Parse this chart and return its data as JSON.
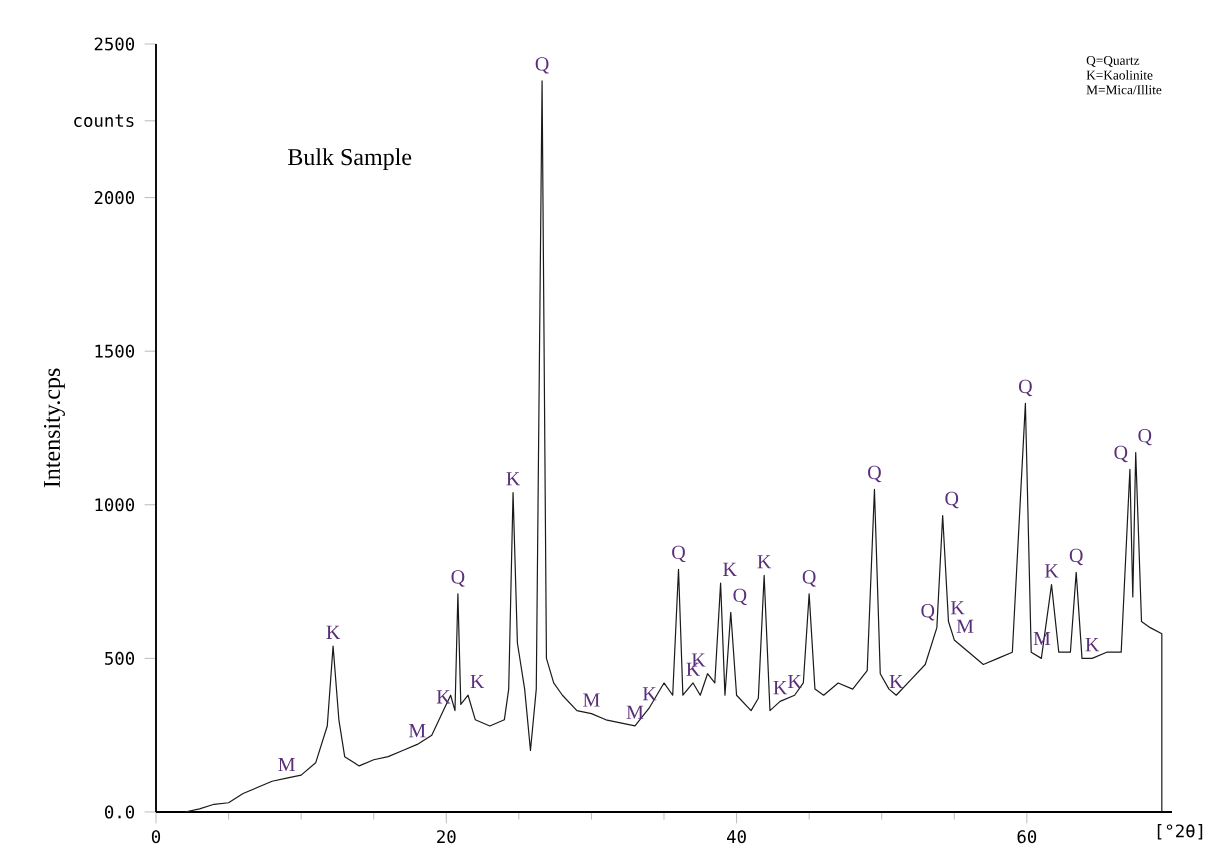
{
  "chart_data": {
    "type": "line",
    "xlabel": "[°2θ]",
    "ylabel": "Intensity.cps",
    "color": "#1a1a1a",
    "xlim": [
      0,
      70
    ],
    "ylim": [
      0,
      2500
    ],
    "xticks": [
      0,
      20,
      40,
      60
    ],
    "yticks": [
      {
        "value": 0,
        "label": "0.0"
      },
      500,
      1000,
      1500,
      2000,
      {
        "value": 2250,
        "label": "counts"
      },
      2500
    ],
    "x": [
      2,
      3,
      4,
      5,
      6,
      7,
      8,
      9,
      10,
      11,
      11.8,
      12.2,
      12.6,
      13,
      14,
      15,
      16,
      17,
      18,
      19,
      19.8,
      20.3,
      20.6,
      20.8,
      21,
      21.5,
      22,
      23,
      24,
      24.3,
      24.6,
      24.9,
      25.4,
      25.8,
      26.2,
      26.6,
      26.9,
      27.4,
      28,
      29,
      30,
      31,
      32,
      33,
      34,
      35,
      35.6,
      36,
      36.3,
      37,
      37.5,
      38,
      38.5,
      38.9,
      39.2,
      39.6,
      40,
      41,
      41.5,
      41.9,
      42.3,
      43,
      44,
      44.6,
      45,
      45.4,
      46,
      47,
      48,
      49,
      49.5,
      49.9,
      50.5,
      51,
      52,
      53,
      53.8,
      54.2,
      54.6,
      55,
      56,
      57,
      58,
      59,
      59.9,
      60.3,
      61,
      61.7,
      62.2,
      63,
      63.4,
      63.8,
      64.5,
      65.5,
      66.5,
      67.1,
      67.3,
      67.5,
      67.9,
      68.5,
      69.3,
      69.3
    ],
    "values": [
      0,
      10,
      25,
      30,
      60,
      80,
      100,
      110,
      120,
      160,
      280,
      540,
      300,
      180,
      150,
      170,
      180,
      200,
      220,
      250,
      330,
      380,
      330,
      710,
      350,
      380,
      300,
      280,
      300,
      400,
      1040,
      550,
      400,
      200,
      400,
      2380,
      500,
      420,
      380,
      330,
      320,
      300,
      290,
      280,
      340,
      420,
      380,
      790,
      380,
      420,
      380,
      450,
      420,
      745,
      380,
      650,
      380,
      330,
      370,
      770,
      330,
      360,
      380,
      420,
      710,
      400,
      380,
      420,
      400,
      460,
      1050,
      450,
      400,
      380,
      430,
      480,
      600,
      965,
      620,
      560,
      520,
      480,
      500,
      520,
      1330,
      520,
      500,
      740,
      520,
      520,
      780,
      500,
      500,
      520,
      520,
      1115,
      700,
      1170,
      620,
      600,
      580,
      0
    ],
    "annotations": [
      "Bulk Sample",
      "Q=Quartz",
      "K=Kaolinite",
      "M=Mica/Illite",
      {
        "text": "K",
        "x": 12.2,
        "y": 540
      },
      {
        "text": "M",
        "x": 9,
        "y": 110
      },
      {
        "text": "M",
        "x": 18,
        "y": 220
      },
      {
        "text": "K",
        "x": 19.8,
        "y": 330
      },
      {
        "text": "Q",
        "x": 20.8,
        "y": 710
      },
      {
        "text": "K",
        "x": 21.5,
        "y": 380
      },
      {
        "text": "K",
        "x": 24.6,
        "y": 1040
      },
      {
        "text": "Q",
        "x": 26.6,
        "y": 2380
      },
      {
        "text": "M",
        "x": 30,
        "y": 320
      },
      {
        "text": "M",
        "x": 33,
        "y": 280
      },
      {
        "text": "K",
        "x": 34,
        "y": 340
      },
      {
        "text": "Q",
        "x": 36,
        "y": 790
      },
      {
        "text": "K",
        "x": 37,
        "y": 420
      },
      {
        "text": "K",
        "x": 38,
        "y": 450
      },
      {
        "text": "K",
        "x": 38.9,
        "y": 745
      },
      {
        "text": "Q",
        "x": 39.6,
        "y": 650
      },
      {
        "text": "K",
        "x": 41.9,
        "y": 770
      },
      {
        "text": "K",
        "x": 43,
        "y": 360
      },
      {
        "text": "K",
        "x": 44,
        "y": 380
      },
      {
        "text": "Q",
        "x": 45,
        "y": 710
      },
      {
        "text": "Q",
        "x": 49.5,
        "y": 1050
      },
      {
        "text": "K",
        "x": 51,
        "y": 380
      },
      {
        "text": "Q",
        "x": 53.8,
        "y": 600
      },
      {
        "text": "Q",
        "x": 54.2,
        "y": 965
      },
      {
        "text": "K",
        "x": 54.6,
        "y": 620
      },
      {
        "text": "M",
        "x": 55,
        "y": 560
      },
      {
        "text": "Q",
        "x": 59.9,
        "y": 1330
      },
      {
        "text": "M",
        "x": 60.3,
        "y": 520
      },
      {
        "text": "K",
        "x": 61.7,
        "y": 740
      },
      {
        "text": "Q",
        "x": 63.4,
        "y": 780
      },
      {
        "text": "K",
        "x": 64.5,
        "y": 500
      },
      {
        "text": "Q",
        "x": 67.1,
        "y": 1115
      },
      {
        "text": "Q",
        "x": 67.5,
        "y": 1170
      }
    ]
  }
}
